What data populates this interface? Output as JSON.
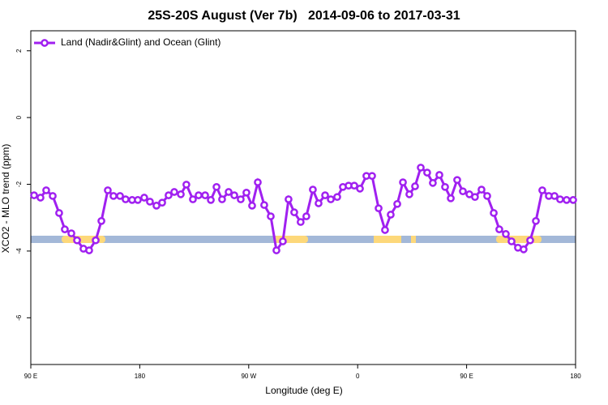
{
  "chart_data": {
    "type": "line",
    "title": "25S-20S August (Ver 7b)   2014-09-06 to 2017-03-31",
    "x_label": "Longitude (deg E)",
    "y_label": "XCO2 - MLO trend (ppm)",
    "xlim": [
      90,
      540
    ],
    "ylim": [
      -7.4,
      2.6
    ],
    "xticks": [
      {
        "value": 90,
        "label": "90 E"
      },
      {
        "value": 180,
        "label": "180"
      },
      {
        "value": 270,
        "label": "90 W"
      },
      {
        "value": 360,
        "label": "0"
      },
      {
        "value": 450,
        "label": "90 E"
      },
      {
        "value": 540,
        "label": "180"
      }
    ],
    "yticks": [
      -6,
      -4,
      -2,
      0,
      2
    ],
    "legend": "top-left",
    "x": [
      92.7,
      98.0,
      102.7,
      108.1,
      113.4,
      118.1,
      123.5,
      128.2,
      133.5,
      138.2,
      143.6,
      148.3,
      153.6,
      158.3,
      163.7,
      168.3,
      173.7,
      178.4,
      183.7,
      188.4,
      193.8,
      198.5,
      203.8,
      208.5,
      213.9,
      218.5,
      223.9,
      228.6,
      234.0,
      238.7,
      243.4,
      248.0,
      253.4,
      258.1,
      263.4,
      268.1,
      272.8,
      277.5,
      282.8,
      288.2,
      292.9,
      298.2,
      302.9,
      307.6,
      312.9,
      317.6,
      323.0,
      327.7,
      333.1,
      337.8,
      343.1,
      347.8,
      352.5,
      357.2,
      361.9,
      367.2,
      371.9,
      377.3,
      382.6,
      387.3,
      392.7,
      397.4,
      402.7,
      407.4,
      412.1,
      417.4,
      422.1,
      427.5,
      432.2,
      436.9,
      442.2,
      446.9,
      452.3,
      456.9,
      462.3,
      467.0,
      472.4,
      477.0,
      482.4,
      487.1,
      492.4,
      497.1,
      502.5,
      507.2,
      512.5,
      517.9,
      522.6,
      527.2,
      532.6,
      538.0
    ],
    "series": [
      {
        "name": "Land (Nadir&Glint) and Ocean (Glint)",
        "color": "#a020f0",
        "values": [
          -2.33,
          -2.4,
          -2.18,
          -2.35,
          -2.86,
          -3.35,
          -3.47,
          -3.68,
          -3.93,
          -3.98,
          -3.68,
          -3.1,
          -2.18,
          -2.35,
          -2.35,
          -2.45,
          -2.47,
          -2.47,
          -2.4,
          -2.52,
          -2.64,
          -2.55,
          -2.33,
          -2.23,
          -2.3,
          -2.01,
          -2.45,
          -2.33,
          -2.33,
          -2.47,
          -2.08,
          -2.45,
          -2.23,
          -2.33,
          -2.45,
          -2.25,
          -2.64,
          -1.94,
          -2.62,
          -2.96,
          -3.98,
          -3.71,
          -2.45,
          -2.84,
          -3.13,
          -2.96,
          -2.16,
          -2.57,
          -2.33,
          -2.45,
          -2.38,
          -2.08,
          -2.04,
          -2.04,
          -2.13,
          -1.75,
          -1.75,
          -2.72,
          -3.37,
          -2.91,
          -2.59,
          -1.94,
          -2.3,
          -2.06,
          -1.5,
          -1.65,
          -1.96,
          -1.72,
          -2.08,
          -2.42,
          -1.87,
          -2.21,
          -2.3,
          -2.38,
          -2.16,
          -2.35,
          -2.86,
          -3.35,
          -3.49,
          -3.71,
          -3.9,
          -3.95,
          -3.68,
          -3.1,
          -2.18,
          -2.35,
          -2.35,
          -2.45,
          -2.47,
          -2.47
        ]
      }
    ]
  }
}
